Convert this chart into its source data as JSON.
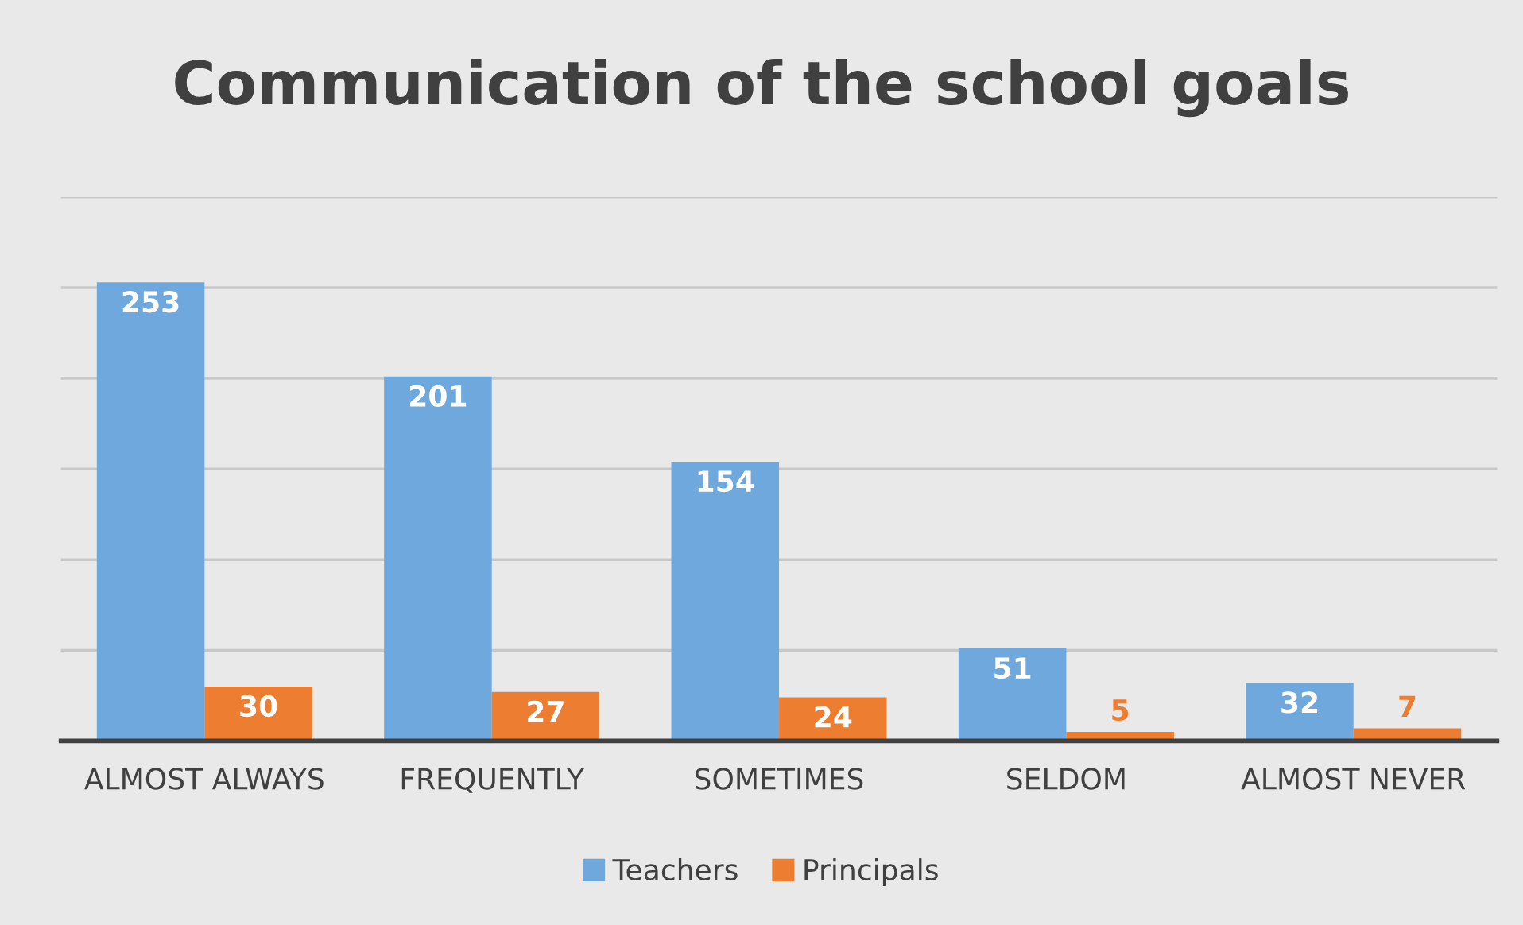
{
  "chart_data": {
    "type": "bar",
    "title": "Communication of the school goals",
    "categories": [
      "ALMOST ALWAYS",
      "FREQUENTLY",
      "SOMETIMES",
      "SELDOM",
      "ALMOST NEVER"
    ],
    "series": [
      {
        "name": "Teachers",
        "color": "#6fa8dc",
        "values": [
          253,
          201,
          154,
          51,
          32
        ]
      },
      {
        "name": "Principals",
        "color": "#ed7d31",
        "values": [
          30,
          27,
          24,
          5,
          7
        ]
      }
    ],
    "ylim": [
      0,
      300
    ],
    "yticks": [
      {
        "value": 0,
        "label": null
      },
      {
        "value": 50,
        "label": null
      },
      {
        "value": 100,
        "label": null
      },
      {
        "value": 150,
        "label": null
      },
      {
        "value": 200,
        "label": null
      },
      {
        "value": 250,
        "label": null
      },
      {
        "value": 300,
        "label": null
      }
    ],
    "grid": "y",
    "legend": "bottom",
    "data_labels": true
  }
}
